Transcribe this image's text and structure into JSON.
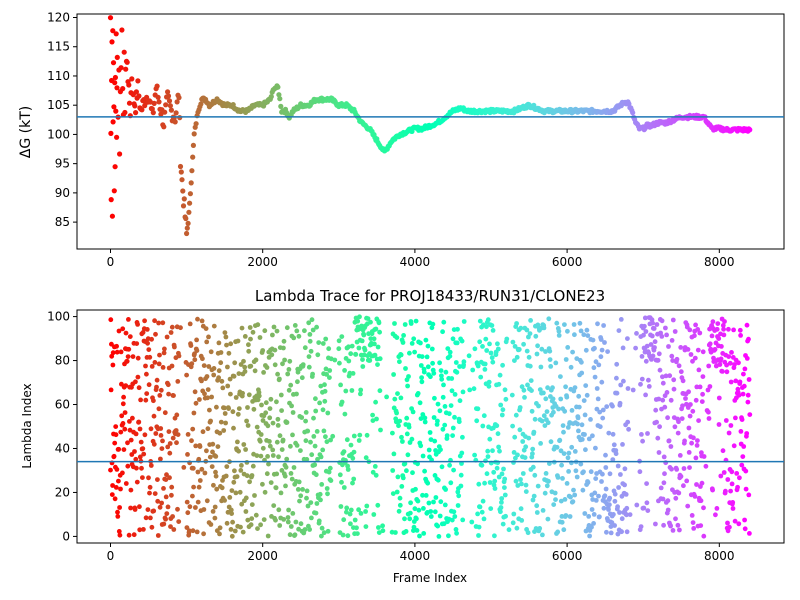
{
  "chart_data": [
    {
      "type": "scatter",
      "title": "",
      "xlabel": "",
      "ylabel": "ΔG (kT)",
      "xlim": [
        -440,
        8850
      ],
      "ylim": [
        80.4,
        120.6
      ],
      "x_ticks": [
        0,
        2000,
        4000,
        6000,
        8000
      ],
      "y_ticks": [
        85,
        90,
        95,
        100,
        105,
        110,
        115,
        120
      ],
      "hline": 103.0,
      "colormap": "rainbow (red → violet with increasing frame index)",
      "series": [
        {
          "x": [
            0,
            5,
            10,
            15,
            20,
            25,
            30,
            35,
            40,
            45,
            50,
            55,
            60,
            65,
            70,
            75,
            80,
            85,
            90,
            100,
            110,
            120,
            130,
            140,
            150,
            160,
            170,
            180,
            190,
            200,
            220,
            240,
            260,
            280,
            300,
            330,
            360,
            400,
            450,
            500,
            550,
            600,
            650,
            700,
            750,
            800,
            850,
            900,
            920,
            940,
            960,
            980,
            1000,
            1020,
            1040,
            1060,
            1080,
            1100,
            1150,
            1200,
            1250,
            1300,
            1400,
            1500,
            1600,
            1700,
            1800,
            1900,
            2000,
            2100,
            2150,
            2200,
            2250,
            2300,
            2350,
            2400,
            2500,
            2600,
            2700,
            2800,
            2900,
            3000,
            3100,
            3200,
            3300,
            3400,
            3500,
            3550,
            3600,
            3650,
            3700,
            3800,
            3900,
            4000,
            4100,
            4200,
            4300,
            4400,
            4500,
            4600,
            4700,
            4800,
            4900,
            5000,
            5100,
            5200,
            5300,
            5400,
            5500,
            5600,
            5700,
            5800,
            5900,
            6000,
            6100,
            6200,
            6300,
            6400,
            6500,
            6600,
            6700,
            6750,
            6800,
            6850,
            6900,
            6950,
            7000,
            7050,
            7100,
            7200,
            7300,
            7400,
            7500,
            7600,
            7700,
            7800,
            7850,
            7900,
            7950,
            8000,
            8100,
            8200,
            8300,
            8400
          ],
          "y": [
            120,
            100,
            90,
            110,
            116,
            86,
            119,
            101,
            112,
            105,
            91,
            108,
            94,
            111,
            104,
            118,
            99,
            109,
            113,
            103,
            112,
            98,
            106,
            110,
            119,
            108,
            102,
            115,
            104,
            111,
            113,
            107,
            104,
            110,
            106,
            105,
            108,
            104,
            106,
            107,
            103,
            108,
            105,
            102,
            106,
            104,
            103,
            107,
            96,
            92,
            89,
            86,
            83,
            85,
            88,
            92,
            96,
            100,
            104,
            106,
            106,
            105,
            106,
            105,
            105,
            104,
            104,
            105,
            105,
            106,
            108,
            108,
            104,
            104,
            103,
            104,
            105,
            105,
            106,
            106,
            106,
            105,
            105,
            104,
            102,
            101,
            99,
            98,
            97,
            98,
            99,
            100,
            100.5,
            101,
            101,
            101.5,
            102,
            103,
            104,
            104.5,
            104,
            104,
            104,
            104,
            104,
            104,
            104,
            104.5,
            105,
            104.5,
            104,
            104,
            104,
            104,
            104,
            104,
            104,
            104,
            104,
            104,
            105,
            105.5,
            105.5,
            104,
            102,
            101,
            101,
            101.5,
            101.5,
            102,
            102,
            102.5,
            103,
            103,
            103,
            103,
            102,
            101,
            101,
            101,
            100.8,
            100.8,
            100.8,
            100.8
          ]
        }
      ]
    },
    {
      "type": "scatter",
      "title": "Lambda Trace for PROJ18433/RUN31/CLONE23",
      "xlabel": "Frame Index",
      "ylabel": "Lambda Index",
      "xlim": [
        -440,
        8850
      ],
      "ylim": [
        -3,
        103
      ],
      "x_ticks": [
        0,
        2000,
        4000,
        6000,
        8000
      ],
      "y_ticks": [
        0,
        20,
        40,
        60,
        80,
        100
      ],
      "hline": 34,
      "colormap": "rainbow (red → violet with increasing frame index)",
      "series": [
        {
          "x_range": [
            0,
            8400
          ],
          "y_range": [
            0,
            99
          ],
          "notes": "dense scatter of lambda indices across all frames"
        }
      ]
    }
  ]
}
